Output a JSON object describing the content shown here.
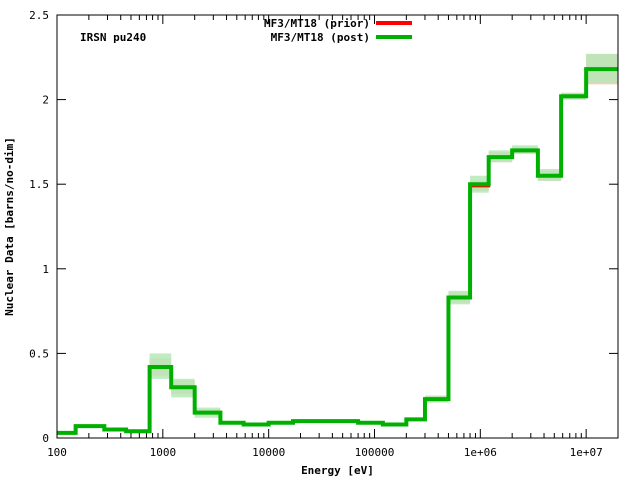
{
  "chart_data": {
    "type": "line",
    "style": "step",
    "annotation": "IRSN pu240",
    "xlabel": "Energy [eV]",
    "ylabel": "Nuclear Data [barns/no-dim]",
    "xscale": "log",
    "xlim": [
      100,
      20000000
    ],
    "ylim": [
      0,
      2.5
    ],
    "xticks": [
      {
        "value": 100,
        "label": "100"
      },
      {
        "value": 1000,
        "label": "1000"
      },
      {
        "value": 10000,
        "label": "10000"
      },
      {
        "value": 100000,
        "label": "100000"
      },
      {
        "value": 1000000,
        "label": "1e+06"
      },
      {
        "value": 10000000,
        "label": "1e+07"
      }
    ],
    "yticks": [
      {
        "value": 0,
        "label": "0"
      },
      {
        "value": 0.5,
        "label": "0.5"
      },
      {
        "value": 1,
        "label": "1"
      },
      {
        "value": 1.5,
        "label": "1.5"
      },
      {
        "value": 2,
        "label": "2"
      },
      {
        "value": 2.5,
        "label": "2.5"
      }
    ],
    "legend_position": "top-center",
    "bin_edges": [
      100,
      150,
      280,
      450,
      750,
      1200,
      2000,
      3500,
      5800,
      10000,
      17000,
      30000,
      70000,
      120000,
      200000,
      300000,
      500000,
      800000,
      1200000,
      2000000,
      3500000,
      5800000,
      10000000,
      20000000
    ],
    "series": [
      {
        "name": "MF3/MT18 (prior)",
        "color": "#ff0000",
        "values": [
          0.03,
          0.07,
          0.05,
          0.04,
          0.42,
          0.3,
          0.15,
          0.09,
          0.08,
          0.09,
          0.1,
          0.1,
          0.09,
          0.08,
          0.11,
          0.23,
          0.83,
          1.49,
          1.66,
          1.7,
          1.55,
          2.02,
          2.18
        ],
        "band_lower": [
          0.02,
          0.06,
          0.04,
          0.03,
          0.37,
          0.26,
          0.13,
          0.08,
          0.07,
          0.08,
          0.09,
          0.09,
          0.08,
          0.07,
          0.1,
          0.21,
          0.8,
          1.46,
          1.63,
          1.68,
          1.52,
          2.0,
          2.09
        ],
        "band_upper": [
          0.04,
          0.08,
          0.06,
          0.05,
          0.47,
          0.34,
          0.17,
          0.1,
          0.09,
          0.1,
          0.11,
          0.11,
          0.1,
          0.09,
          0.12,
          0.25,
          0.86,
          1.52,
          1.69,
          1.72,
          1.58,
          2.04,
          2.27
        ],
        "band_color": "#f2c2b4"
      },
      {
        "name": "MF3/MT18 (post)",
        "color": "#00b000",
        "values": [
          0.03,
          0.07,
          0.05,
          0.04,
          0.42,
          0.3,
          0.15,
          0.09,
          0.08,
          0.09,
          0.1,
          0.1,
          0.09,
          0.08,
          0.11,
          0.23,
          0.83,
          1.5,
          1.66,
          1.7,
          1.55,
          2.02,
          2.18
        ],
        "band_lower": [
          0.02,
          0.06,
          0.04,
          0.03,
          0.35,
          0.24,
          0.12,
          0.08,
          0.07,
          0.08,
          0.09,
          0.09,
          0.08,
          0.07,
          0.1,
          0.21,
          0.79,
          1.45,
          1.63,
          1.68,
          1.52,
          2.0,
          2.1
        ],
        "band_upper": [
          0.04,
          0.08,
          0.06,
          0.05,
          0.5,
          0.35,
          0.18,
          0.1,
          0.09,
          0.1,
          0.11,
          0.11,
          0.1,
          0.09,
          0.12,
          0.25,
          0.87,
          1.55,
          1.7,
          1.73,
          1.59,
          2.04,
          2.27
        ],
        "band_color": "#b6e8b6"
      }
    ]
  }
}
